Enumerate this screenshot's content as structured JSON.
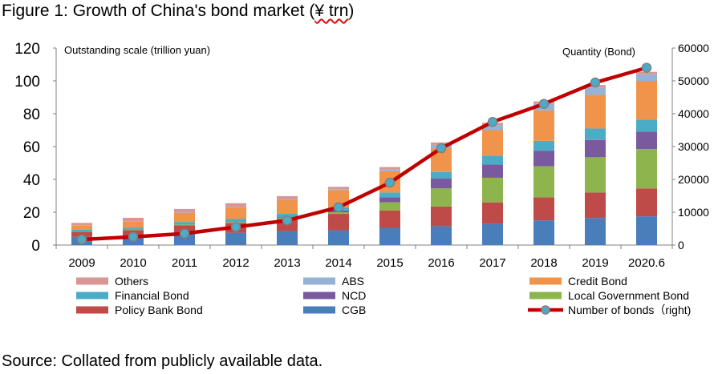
{
  "figure": {
    "title_prefix": "Figure 1: Growth of China's bond market (",
    "title_unit": "¥ trn",
    "title_suffix": ")",
    "source": "Source: Collated from publicly available data."
  },
  "chart_data": {
    "type": "bar",
    "stacked": true,
    "categories": [
      "2009",
      "2010",
      "2011",
      "2012",
      "2013",
      "2014",
      "2015",
      "2016",
      "2017",
      "2018",
      "2019",
      "2020.6"
    ],
    "ylabel": "Outstanding scale (trillion yuan)",
    "ylim": [
      0,
      120
    ],
    "yticks": [
      0,
      20,
      40,
      60,
      80,
      100,
      120
    ],
    "y2label": "Quantity (Bond)",
    "y2lim": [
      0,
      60000
    ],
    "y2ticks": [
      "0",
      "10000",
      "20000",
      "30000",
      "40000",
      "50000",
      "60000"
    ],
    "grid": false,
    "legend_position": "bottom",
    "series": [
      {
        "name": "CGB",
        "color": "#4a7ebb",
        "values": [
          5,
          5.5,
          7,
          7.5,
          8.5,
          9,
          10.5,
          11.5,
          13,
          15,
          16.5,
          17.5
        ]
      },
      {
        "name": "Policy Bank Bond",
        "color": "#be4b48",
        "values": [
          3,
          3.5,
          5,
          6,
          7.5,
          10,
          10.5,
          12,
          13,
          14,
          15.5,
          17
        ]
      },
      {
        "name": "Local Government Bond",
        "color": "#8eb44e",
        "values": [
          0.3,
          0.5,
          0.5,
          0.5,
          0.5,
          1,
          5,
          11,
          15,
          19,
          21.5,
          24
        ]
      },
      {
        "name": "NCD",
        "color": "#7a5a9e",
        "values": [
          0,
          0,
          0,
          0,
          0.5,
          1,
          3,
          6,
          8,
          9.5,
          10.5,
          10.5
        ]
      },
      {
        "name": "Financial Bond",
        "color": "#4aacc6",
        "values": [
          1,
          1,
          1.5,
          2,
          2,
          2,
          3,
          4,
          5.5,
          6,
          7,
          7.5
        ]
      },
      {
        "name": "Credit Bond",
        "color": "#f0934b",
        "values": [
          2.5,
          4,
          5.5,
          7,
          8.5,
          10.5,
          13,
          14.5,
          15.5,
          18.5,
          20.5,
          23.5
        ]
      },
      {
        "name": "ABS",
        "color": "#95b3d7",
        "values": [
          0.1,
          0.1,
          0.1,
          0.2,
          0.3,
          0.5,
          1,
          2,
          3,
          4,
          4.5,
          4
        ]
      },
      {
        "name": "Others",
        "color": "#d99694",
        "values": [
          1.6,
          2,
          2.4,
          2.3,
          2,
          1.5,
          1.5,
          1.5,
          1.5,
          1.5,
          1.5,
          1.5
        ]
      }
    ],
    "line": {
      "name": "Number of bonds（right)",
      "color": "#c00000",
      "marker_color": "#4bacc6",
      "axis": "right",
      "values": [
        1700,
        2500,
        3500,
        5500,
        7500,
        11500,
        19000,
        29500,
        37500,
        43000,
        49500,
        54000
      ]
    }
  }
}
